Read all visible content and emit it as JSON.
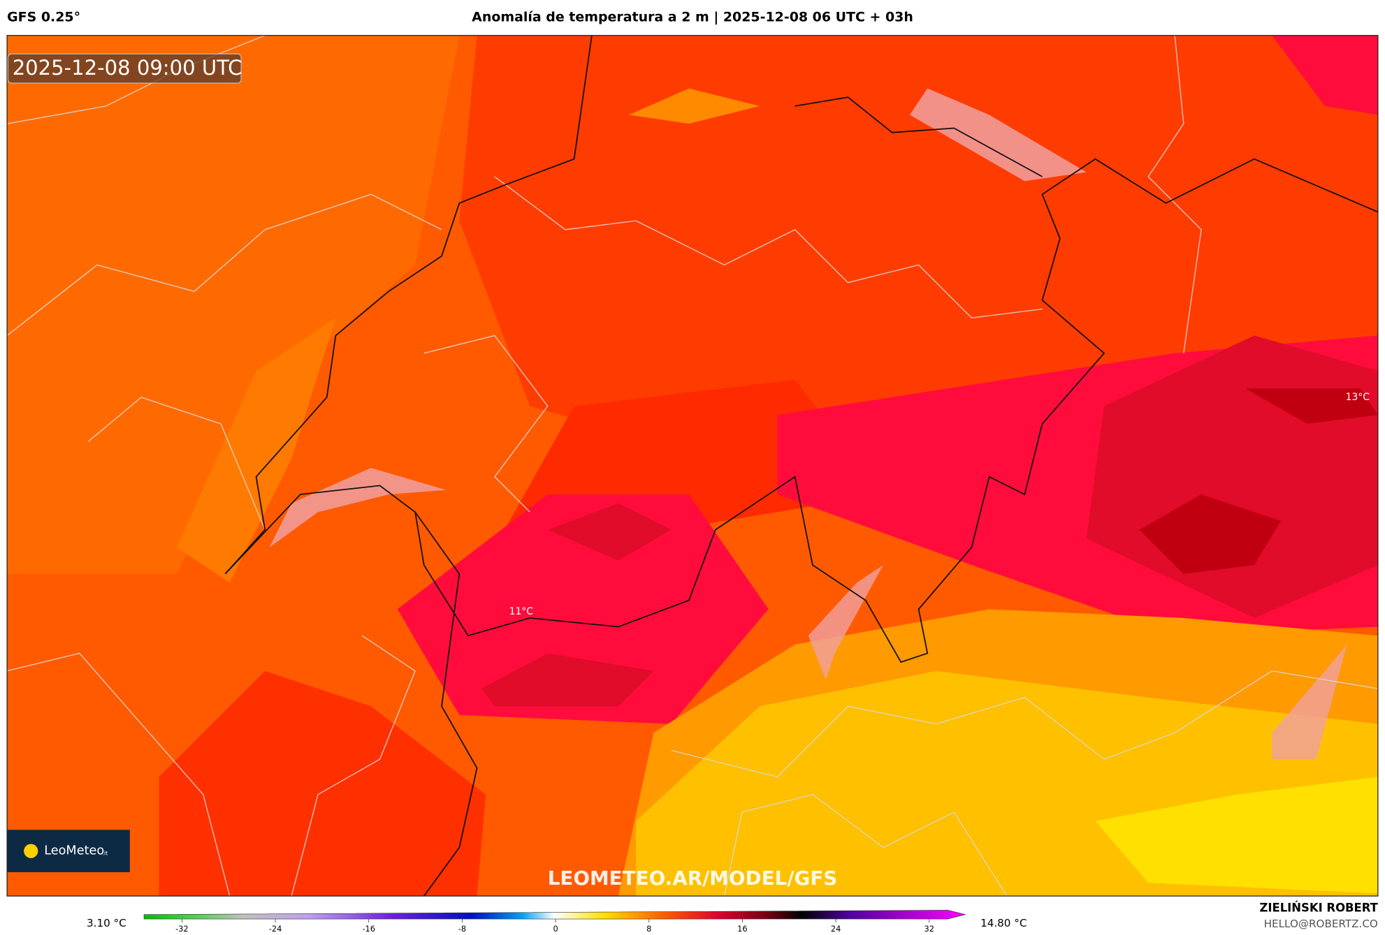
{
  "header": {
    "model": "GFS 0.25°",
    "title": "Anomalía de temperatura a 2 m | 2025-12-08 06 UTC + 03h"
  },
  "map": {
    "timestamp": "2025-12-08 09:00 UTC",
    "labels": [
      "13°C",
      "11°C"
    ],
    "logo": "LeoMeteo",
    "logo_suffix": ".it",
    "watermark": "LEOMETEO.AR/MODEL/GFS"
  },
  "colorbar": {
    "min_label": "3.10 °C",
    "max_label": "14.80 °C",
    "ticks": [
      -32,
      -24,
      -16,
      -8,
      0,
      8,
      16,
      24,
      32
    ]
  },
  "credits": {
    "author": "ZIELIŃSKI ROBERT",
    "email": "HELLO@ROBERTZ.CO"
  }
}
